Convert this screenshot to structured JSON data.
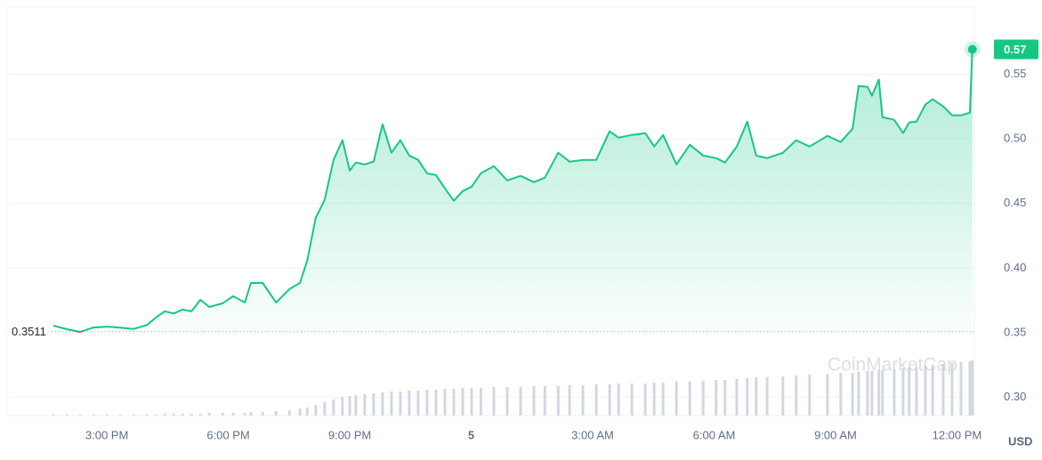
{
  "chart_data": {
    "type": "price",
    "x": [
      13.68,
      14.01,
      14.34,
      14.67,
      15.0,
      15.33,
      15.66,
      15.99,
      16.21,
      16.43,
      16.65,
      16.87,
      17.09,
      17.31,
      17.53,
      17.86,
      18.12,
      18.41,
      18.56,
      18.85,
      19.18,
      19.51,
      19.77,
      19.95,
      20.16,
      20.38,
      20.6,
      20.82,
      21.0,
      21.15,
      21.37,
      21.59,
      21.81,
      22.03,
      22.25,
      22.47,
      22.69,
      22.91,
      23.13,
      23.35,
      23.57,
      23.79,
      24.01,
      24.24,
      24.56,
      24.89,
      25.22,
      25.55,
      25.82,
      26.15,
      26.43,
      26.76,
      27.09,
      27.42,
      27.64,
      27.97,
      28.3,
      28.52,
      28.74,
      29.07,
      29.4,
      29.73,
      30.05,
      30.27,
      30.56,
      30.82,
      31.04,
      31.31,
      31.7,
      32.03,
      32.36,
      32.8,
      33.13,
      33.42,
      33.57,
      33.79,
      33.9,
      34.07,
      34.16,
      34.45,
      34.67,
      34.82,
      35.0,
      35.22,
      35.4,
      35.66,
      35.88,
      36.1,
      36.32,
      36.38
    ],
    "series": [
      {
        "color": "#16c784",
        "values": [
          0.3555,
          0.3528,
          0.3507,
          0.3541,
          0.3548,
          0.354,
          0.353,
          0.356,
          0.3617,
          0.3666,
          0.365,
          0.368,
          0.3666,
          0.3755,
          0.37,
          0.3728,
          0.3783,
          0.3734,
          0.3886,
          0.3886,
          0.3734,
          0.3838,
          0.3886,
          0.4059,
          0.439,
          0.4528,
          0.4838,
          0.499,
          0.4755,
          0.4817,
          0.4803,
          0.4824,
          0.5114,
          0.4893,
          0.499,
          0.4872,
          0.4838,
          0.4734,
          0.4721,
          0.4617,
          0.4521,
          0.4597,
          0.4631,
          0.4734,
          0.479,
          0.4679,
          0.4714,
          0.4666,
          0.47,
          0.4893,
          0.4824,
          0.4838,
          0.4838,
          0.5059,
          0.501,
          0.5031,
          0.5045,
          0.4941,
          0.5031,
          0.4803,
          0.4955,
          0.4872,
          0.4852,
          0.4817,
          0.4941,
          0.5134,
          0.4872,
          0.4852,
          0.4893,
          0.499,
          0.4941,
          0.5024,
          0.4976,
          0.5079,
          0.541,
          0.5403,
          0.5334,
          0.5459,
          0.5169,
          0.5148,
          0.5045,
          0.5128,
          0.5134,
          0.5266,
          0.5307,
          0.5252,
          0.5183,
          0.5183,
          0.5203,
          0.5693
        ]
      }
    ],
    "below_color": "#ea3943",
    "volume": {
      "color": "#d3d7df",
      "vlim": [
        0,
        100
      ],
      "values": [
        1,
        1,
        1,
        1,
        1,
        1,
        1,
        1,
        1,
        2,
        2,
        2,
        2,
        2,
        3,
        3,
        3,
        3,
        4,
        4,
        5,
        6,
        8,
        9,
        12,
        15,
        18,
        21,
        22,
        23,
        24,
        25,
        26,
        27,
        27,
        28,
        28,
        29,
        29,
        30,
        30,
        31,
        31,
        31,
        32,
        32,
        32,
        33,
        33,
        33,
        34,
        34,
        35,
        35,
        36,
        36,
        36,
        37,
        37,
        38,
        38,
        39,
        40,
        40,
        41,
        42,
        43,
        43,
        44,
        45,
        46,
        47,
        48,
        48,
        49,
        50,
        50,
        51,
        51,
        52,
        53,
        54,
        55,
        56,
        57,
        58,
        59,
        60,
        61,
        62
      ]
    },
    "baseline": 0.3511,
    "last_label": "0.57",
    "currency": "USD",
    "watermark": "CoinMarketCap",
    "xlim": [
      12.58,
      36.43
    ],
    "ylim": [
      0.286,
      0.602
    ],
    "xticks": [
      {
        "value": 15,
        "label": "3:00 PM"
      },
      {
        "value": 18,
        "label": "6:00 PM"
      },
      {
        "value": 21,
        "label": "9:00 PM"
      },
      {
        "value": 24,
        "label": "5"
      },
      {
        "value": 27,
        "label": "3:00 AM"
      },
      {
        "value": 30,
        "label": "6:00 AM"
      },
      {
        "value": 33,
        "label": "9:00 AM"
      },
      {
        "value": 36,
        "label": "12:00 PM"
      }
    ],
    "yticks": [
      {
        "value": 0.3,
        "label": "0.30"
      },
      0.35,
      {
        "value": 0.4,
        "label": "0.40"
      },
      0.45,
      {
        "value": 0.5,
        "label": "0.50"
      },
      0.55
    ],
    "grid": true
  }
}
